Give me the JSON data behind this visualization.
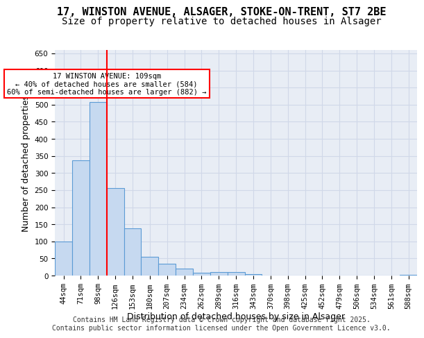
{
  "title_line1": "17, WINSTON AVENUE, ALSAGER, STOKE-ON-TRENT, ST7 2BE",
  "title_line2": "Size of property relative to detached houses in Alsager",
  "xlabel": "Distribution of detached houses by size in Alsager",
  "ylabel": "Number of detached properties",
  "categories": [
    "44sqm",
    "71sqm",
    "98sqm",
    "126sqm",
    "153sqm",
    "180sqm",
    "207sqm",
    "234sqm",
    "262sqm",
    "289sqm",
    "316sqm",
    "343sqm",
    "370sqm",
    "398sqm",
    "425sqm",
    "452sqm",
    "479sqm",
    "506sqm",
    "534sqm",
    "561sqm",
    "588sqm"
  ],
  "values": [
    99,
    337,
    507,
    255,
    138,
    54,
    35,
    21,
    8,
    10,
    10,
    5,
    1,
    0,
    0,
    0,
    0,
    0,
    0,
    0,
    3
  ],
  "bar_color": "#c6d9f0",
  "bar_edge_color": "#5b9bd5",
  "red_line_x": 2.5,
  "annotation_text": "17 WINSTON AVENUE: 109sqm\n← 40% of detached houses are smaller (584)\n60% of semi-detached houses are larger (882) →",
  "annotation_box_color": "#ffffff",
  "annotation_border_color": "#ff0000",
  "ylim": [
    0,
    660
  ],
  "yticks": [
    0,
    50,
    100,
    150,
    200,
    250,
    300,
    350,
    400,
    450,
    500,
    550,
    600,
    650
  ],
  "grid_color": "#d0d8e8",
  "background_color": "#e8edf5",
  "footer_line1": "Contains HM Land Registry data © Crown copyright and database right 2025.",
  "footer_line2": "Contains public sector information licensed under the Open Government Licence v3.0.",
  "title_fontsize": 11,
  "subtitle_fontsize": 10,
  "tick_fontsize": 7.5,
  "label_fontsize": 9,
  "footer_fontsize": 7
}
